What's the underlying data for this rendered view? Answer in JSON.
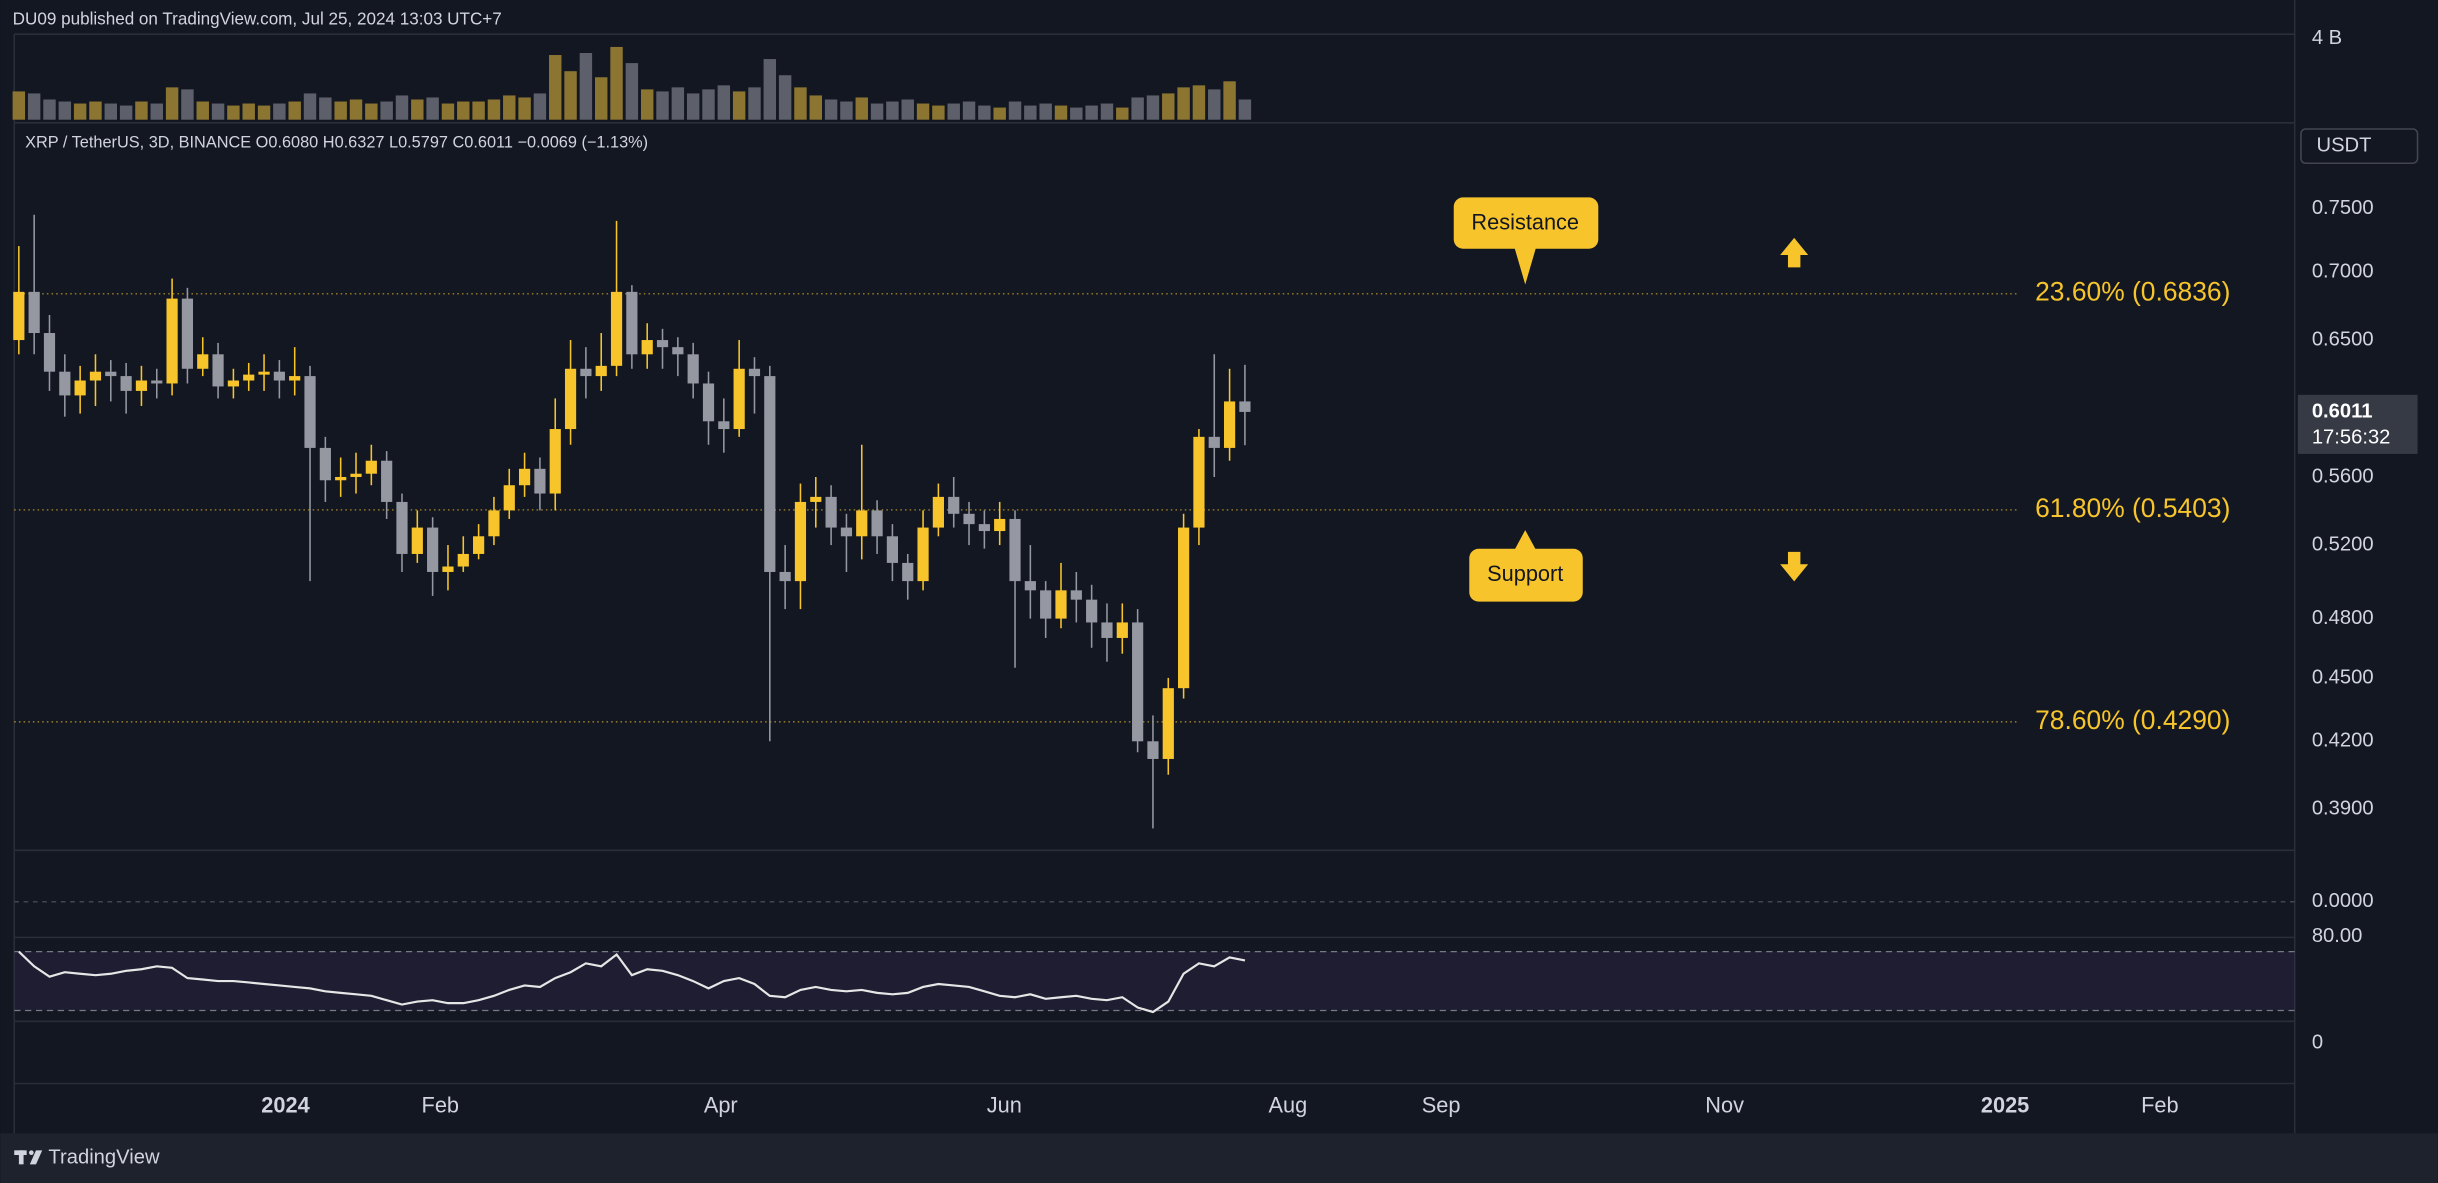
{
  "header": {
    "published": "DU09 published on TradingView.com, Jul 25, 2024 13:03 UTC+7"
  },
  "chart_data": {
    "type": "candlestick",
    "legend": "XRP / TetherUS, 3D, BINANCE  O0.6080 H0.6327 L0.5797 C0.6011 −0.0069 (−1.13%)",
    "currency": "USDT",
    "log_scale": true,
    "up_color": "#f7c52b",
    "down_color": "#9598a1",
    "open": [
      0.65,
      0.685,
      0.655,
      0.628,
      0.612,
      0.622,
      0.628,
      0.625,
      0.615,
      0.622,
      0.62,
      0.68,
      0.63,
      0.64,
      0.618,
      0.622,
      0.626,
      0.628,
      0.622,
      0.625,
      0.578,
      0.558,
      0.56,
      0.562,
      0.57,
      0.545,
      0.515,
      0.53,
      0.505,
      0.508,
      0.515,
      0.525,
      0.54,
      0.555,
      0.565,
      0.55,
      0.59,
      0.63,
      0.625,
      0.632,
      0.685,
      0.64,
      0.65,
      0.645,
      0.64,
      0.62,
      0.595,
      0.59,
      0.63,
      0.625,
      0.505,
      0.5,
      0.545,
      0.548,
      0.53,
      0.525,
      0.54,
      0.525,
      0.51,
      0.5,
      0.53,
      0.548,
      0.538,
      0.532,
      0.528,
      0.535,
      0.5,
      0.495,
      0.48,
      0.495,
      0.49,
      0.478,
      0.47,
      0.478,
      0.42,
      0.412,
      0.445,
      0.53,
      0.585,
      0.578,
      0.608
    ],
    "high": [
      0.72,
      0.745,
      0.668,
      0.64,
      0.632,
      0.64,
      0.636,
      0.634,
      0.632,
      0.63,
      0.695,
      0.688,
      0.652,
      0.648,
      0.63,
      0.634,
      0.64,
      0.636,
      0.645,
      0.632,
      0.585,
      0.572,
      0.575,
      0.58,
      0.576,
      0.55,
      0.54,
      0.536,
      0.52,
      0.525,
      0.532,
      0.548,
      0.565,
      0.575,
      0.572,
      0.61,
      0.65,
      0.645,
      0.655,
      0.74,
      0.69,
      0.662,
      0.658,
      0.652,
      0.648,
      0.628,
      0.61,
      0.65,
      0.638,
      0.632,
      0.52,
      0.556,
      0.56,
      0.555,
      0.538,
      0.58,
      0.546,
      0.532,
      0.515,
      0.54,
      0.556,
      0.56,
      0.545,
      0.54,
      0.545,
      0.54,
      0.52,
      0.5,
      0.51,
      0.505,
      0.498,
      0.488,
      0.488,
      0.485,
      0.432,
      0.45,
      0.538,
      0.59,
      0.64,
      0.63,
      0.6327
    ],
    "low": [
      0.64,
      0.64,
      0.615,
      0.598,
      0.6,
      0.605,
      0.608,
      0.6,
      0.605,
      0.61,
      0.612,
      0.62,
      0.625,
      0.61,
      0.61,
      0.615,
      0.615,
      0.61,
      0.612,
      0.5,
      0.545,
      0.548,
      0.55,
      0.555,
      0.535,
      0.505,
      0.51,
      0.492,
      0.495,
      0.505,
      0.512,
      0.52,
      0.535,
      0.548,
      0.54,
      0.54,
      0.58,
      0.61,
      0.615,
      0.625,
      0.63,
      0.63,
      0.63,
      0.625,
      0.61,
      0.58,
      0.575,
      0.585,
      0.6,
      0.42,
      0.485,
      0.485,
      0.53,
      0.52,
      0.505,
      0.512,
      0.515,
      0.5,
      0.49,
      0.495,
      0.525,
      0.53,
      0.52,
      0.518,
      0.52,
      0.455,
      0.48,
      0.47,
      0.475,
      0.478,
      0.465,
      0.458,
      0.462,
      0.415,
      0.382,
      0.405,
      0.44,
      0.52,
      0.56,
      0.57,
      0.5797
    ],
    "close": [
      0.685,
      0.655,
      0.628,
      0.612,
      0.622,
      0.628,
      0.625,
      0.615,
      0.622,
      0.62,
      0.68,
      0.63,
      0.64,
      0.618,
      0.622,
      0.626,
      0.628,
      0.622,
      0.625,
      0.578,
      0.558,
      0.56,
      0.562,
      0.57,
      0.545,
      0.515,
      0.53,
      0.505,
      0.508,
      0.515,
      0.525,
      0.54,
      0.555,
      0.565,
      0.55,
      0.59,
      0.63,
      0.625,
      0.632,
      0.685,
      0.64,
      0.65,
      0.645,
      0.64,
      0.62,
      0.595,
      0.59,
      0.63,
      0.625,
      0.505,
      0.5,
      0.545,
      0.548,
      0.53,
      0.525,
      0.54,
      0.525,
      0.51,
      0.5,
      0.53,
      0.548,
      0.538,
      0.532,
      0.528,
      0.535,
      0.5,
      0.495,
      0.48,
      0.495,
      0.49,
      0.478,
      0.47,
      0.478,
      0.42,
      0.412,
      0.445,
      0.53,
      0.585,
      0.578,
      0.608,
      0.6011
    ],
    "ylim": [
      0.373,
      0.822
    ],
    "yticks": [
      {
        "value": 0.75,
        "label": "0.7500"
      },
      {
        "value": 0.7,
        "label": "0.7000"
      },
      {
        "value": 0.65,
        "label": "0.6500"
      },
      {
        "value": 0.56,
        "label": "0.5600"
      },
      {
        "value": 0.52,
        "label": "0.5200"
      },
      {
        "value": 0.48,
        "label": "0.4800"
      },
      {
        "value": 0.45,
        "label": "0.4500"
      },
      {
        "value": 0.42,
        "label": "0.4200"
      },
      {
        "value": 0.39,
        "label": "0.3900"
      }
    ],
    "xlim": [
      -0.3,
      148.5
    ],
    "xticks": [
      {
        "value": 17.4,
        "label": "2024"
      },
      {
        "value": 27.5,
        "label": "Feb"
      },
      {
        "value": 45.8,
        "label": "Apr"
      },
      {
        "value": 64.3,
        "label": "Jun"
      },
      {
        "value": 82.8,
        "label": "Aug"
      },
      {
        "value": 92.8,
        "label": "Sep"
      },
      {
        "value": 111.3,
        "label": "Nov"
      },
      {
        "value": 129.6,
        "label": "2025"
      },
      {
        "value": 139.7,
        "label": "Feb"
      }
    ],
    "last_price": 0.6011,
    "countdown": "17:56:32",
    "fib_levels": [
      {
        "value": 0.6836,
        "label": "23.60% (0.6836)"
      },
      {
        "value": 0.5403,
        "label": "61.80% (0.5403)"
      },
      {
        "value": 0.429,
        "label": "78.60% (0.4290)"
      }
    ],
    "fib_color": "#f7c52b",
    "annotations": [
      "Resistance",
      "Support"
    ],
    "volume": {
      "values": [
        1400000000.0,
        1300000000.0,
        1000000000.0,
        900000000.0,
        800000000.0,
        900000000.0,
        800000000.0,
        700000000.0,
        900000000.0,
        800000000.0,
        1600000000.0,
        1500000000.0,
        900000000.0,
        800000000.0,
        700000000.0,
        800000000.0,
        700000000.0,
        800000000.0,
        900000000.0,
        1300000000.0,
        1100000000.0,
        900000000.0,
        1000000000.0,
        800000000.0,
        900000000.0,
        1200000000.0,
        1000000000.0,
        1100000000.0,
        800000000.0,
        900000000.0,
        900000000.0,
        1000000000.0,
        1200000000.0,
        1100000000.0,
        1300000000.0,
        3200000000.0,
        2400000000.0,
        3300000000.0,
        2100000000.0,
        3600000000.0,
        2800000000.0,
        1500000000.0,
        1400000000.0,
        1600000000.0,
        1300000000.0,
        1500000000.0,
        1700000000.0,
        1400000000.0,
        1600000000.0,
        3000000000.0,
        2200000000.0,
        1600000000.0,
        1200000000.0,
        1000000000.0,
        900000000.0,
        1100000000.0,
        800000000.0,
        900000000.0,
        1000000000.0,
        800000000.0,
        700000000.0,
        800000000.0,
        900000000.0,
        700000000.0,
        600000000.0,
        900000000.0,
        700000000.0,
        800000000.0,
        700000000.0,
        600000000.0,
        700000000.0,
        800000000.0,
        600000000.0,
        1100000000.0,
        1200000000.0,
        1300000000.0,
        1600000000.0,
        1700000000.0,
        1500000000.0,
        1900000000.0,
        1000000000.0
      ],
      "ylim": [
        0,
        4230000000.0
      ],
      "yticks": [
        {
          "value": 4000000000.0,
          "label": "4 B"
        }
      ],
      "up_color": "#8b7530",
      "down_color": "#5d606b"
    },
    "macd": {
      "ylim": [
        -0.03,
        0.042
      ],
      "yticks": [
        {
          "value": 0,
          "label": "0.0000"
        }
      ]
    },
    "rsi": {
      "values": [
        70,
        60,
        53,
        56,
        55,
        54,
        55,
        57,
        58,
        60,
        59,
        52,
        51,
        50,
        50,
        49,
        48,
        47,
        46,
        45,
        43,
        42,
        41,
        40,
        37,
        34,
        36,
        37,
        35,
        35,
        37,
        40,
        44,
        47,
        46,
        52,
        56,
        62,
        60,
        68,
        54,
        58,
        57,
        54,
        50,
        45,
        50,
        52,
        48,
        40,
        39,
        44,
        46,
        44,
        43,
        44,
        42,
        41,
        42,
        46,
        48,
        47,
        46,
        43,
        40,
        39,
        41,
        38,
        39,
        40,
        38,
        37,
        39,
        32,
        29,
        36,
        55,
        62,
        60,
        66,
        64
      ],
      "ylim": [
        20,
        86
      ],
      "yticks": [
        {
          "value": 80,
          "label": "80.00"
        }
      ],
      "band": [
        70,
        30
      ],
      "color": "#e6e6e6"
    },
    "lower": {
      "ylim": [
        -65,
        35
      ],
      "yticks": [
        0
      ]
    }
  },
  "footer": {
    "brand": "TradingView"
  }
}
